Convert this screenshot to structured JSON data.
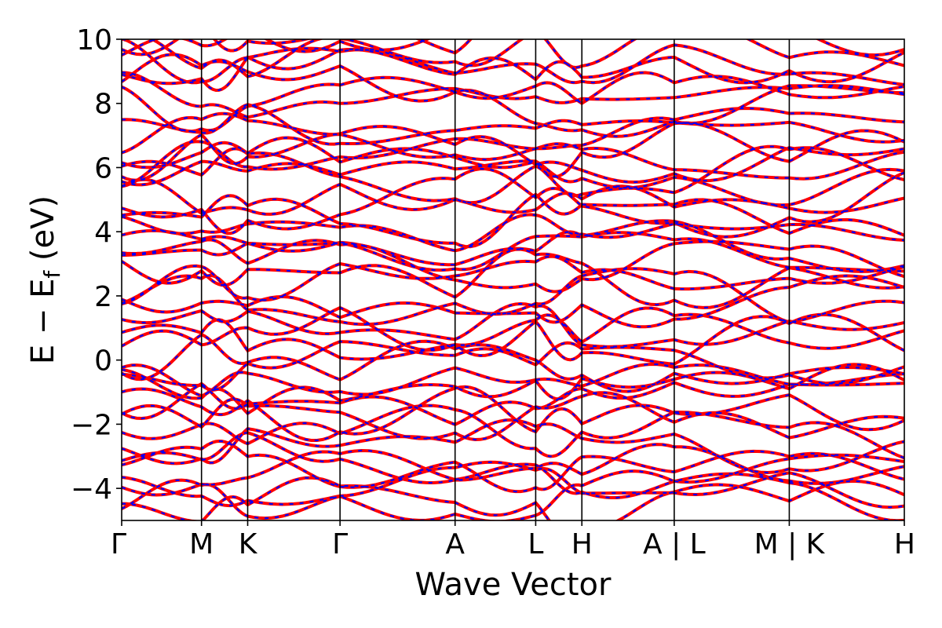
{
  "chart_data": {
    "type": "line",
    "title": "",
    "xlabel": "Wave Vector",
    "ylabel": {
      "main": "E − E",
      "subscript": "f",
      "unit": " (eV)"
    },
    "ylim": [
      -5,
      10
    ],
    "yticks": [
      {
        "value": -4,
        "label": "−4"
      },
      {
        "value": -2,
        "label": "−2"
      },
      {
        "value": 0,
        "label": "0"
      },
      {
        "value": 2,
        "label": "2"
      },
      {
        "value": 4,
        "label": "4"
      },
      {
        "value": 6,
        "label": "6"
      },
      {
        "value": 8,
        "label": "8"
      },
      {
        "value": 10,
        "label": "10"
      }
    ],
    "xlim": [
      0,
      1
    ],
    "kpoints": [
      {
        "x": 0.0,
        "label": "Γ"
      },
      {
        "x": 0.102,
        "label": "M"
      },
      {
        "x": 0.161,
        "label": "K"
      },
      {
        "x": 0.279,
        "label": "Γ"
      },
      {
        "x": 0.426,
        "label": "A"
      },
      {
        "x": 0.529,
        "label": "L"
      },
      {
        "x": 0.588,
        "label": "H"
      },
      {
        "x": 0.706,
        "label": "A | L"
      },
      {
        "x": 0.853,
        "label": "M | K"
      },
      {
        "x": 1.0,
        "label": "H"
      }
    ],
    "series_styles": [
      {
        "name": "",
        "color": "#ff0000",
        "style": "solid"
      },
      {
        "name": "",
        "color": "#0000ff",
        "style": "dashed"
      }
    ],
    "grid": false,
    "bands_summary": "approx. 40 bands spanning -5 to 10 eV along the k-path; both series overlap"
  }
}
